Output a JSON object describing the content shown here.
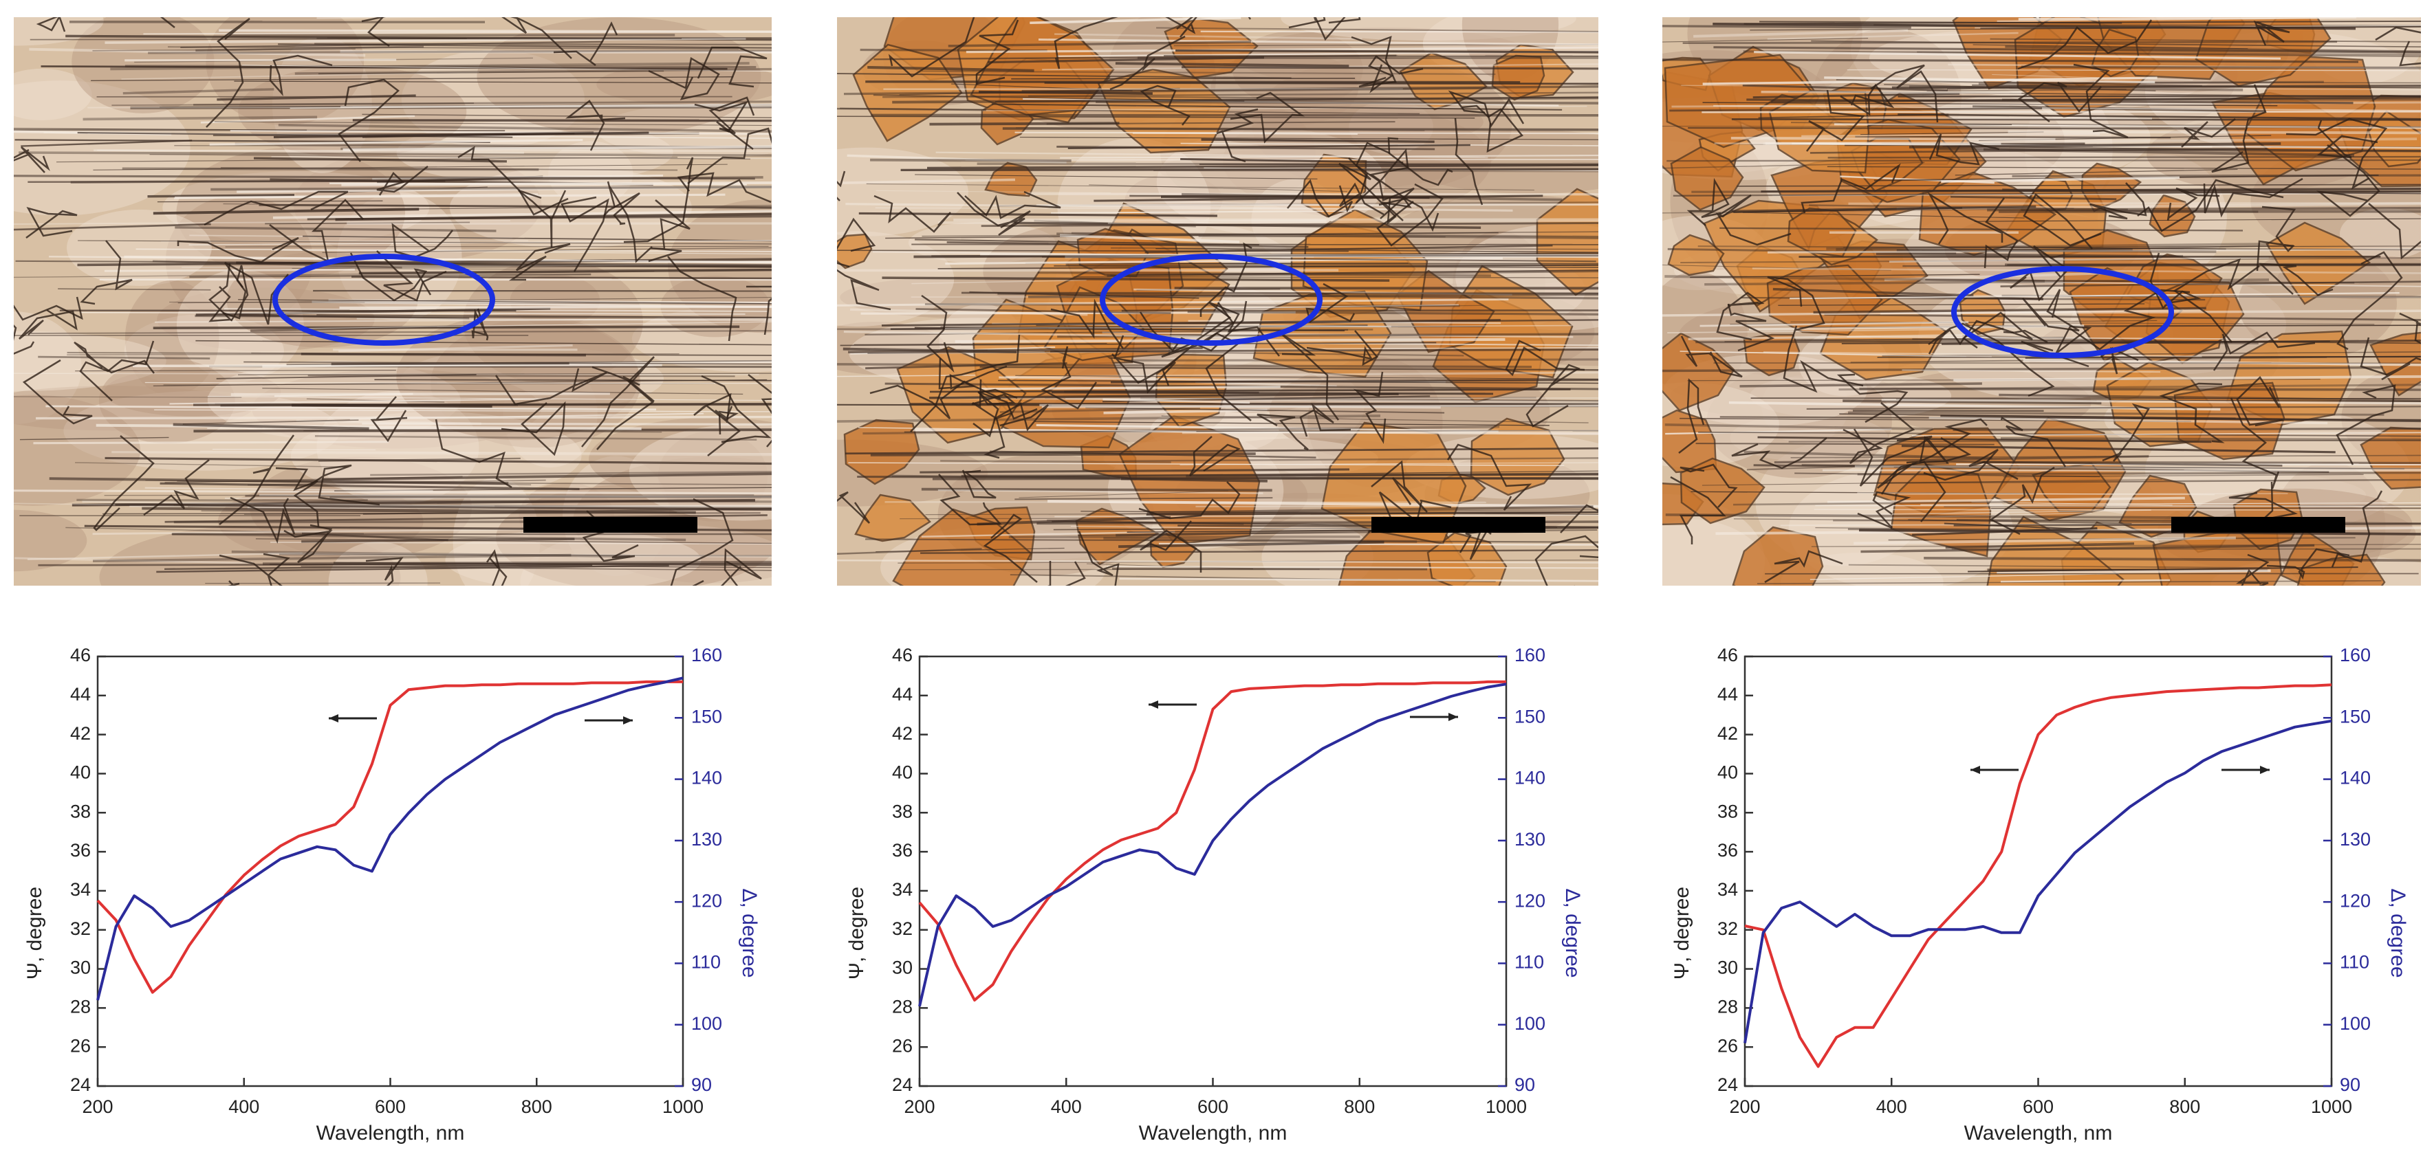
{
  "chart_data": [
    {
      "type": "line",
      "xlabel": "Wavelength, nm",
      "ylabel": "Ψ, degree",
      "y2label": "Δ, degree",
      "x": [
        200,
        225,
        250,
        275,
        300,
        325,
        350,
        375,
        400,
        425,
        450,
        475,
        500,
        525,
        550,
        575,
        600,
        625,
        650,
        675,
        700,
        725,
        750,
        775,
        800,
        825,
        850,
        875,
        900,
        925,
        950,
        975,
        1000
      ],
      "xlim": [
        200,
        1000
      ],
      "xticks": [
        200,
        400,
        600,
        800,
        1000
      ],
      "ylim": [
        24,
        46
      ],
      "yticks": [
        24,
        26,
        28,
        30,
        32,
        34,
        36,
        38,
        40,
        42,
        44,
        46
      ],
      "y2lim": [
        90,
        160
      ],
      "y2ticks": [
        90,
        100,
        110,
        120,
        130,
        140,
        150,
        160
      ],
      "series": [
        {
          "color": "#e03333",
          "values": [
            33.5,
            32.5,
            30.5,
            28.8,
            29.6,
            31.2,
            32.5,
            33.8,
            34.8,
            35.6,
            36.3,
            36.8,
            37.1,
            37.4,
            38.3,
            40.5,
            43.5,
            44.3,
            44.4,
            44.5,
            44.5,
            44.55,
            44.55,
            44.6,
            44.6,
            44.6,
            44.6,
            44.65,
            44.65,
            44.65,
            44.7,
            44.7,
            44.7
          ]
        },
        {
          "color": "#2b2b9b",
          "axis": "y2",
          "values": [
            104,
            116,
            121,
            119,
            116,
            117,
            119,
            121,
            123,
            125,
            127,
            128,
            129,
            128.5,
            126,
            125,
            131,
            134.5,
            137.5,
            140,
            142,
            144,
            146,
            147.5,
            149,
            150.5,
            151.5,
            152.5,
            153.5,
            154.5,
            155.2,
            155.8,
            156.5
          ]
        }
      ]
    },
    {
      "type": "line",
      "xlabel": "Wavelength, nm",
      "ylabel": "Ψ, degree",
      "y2label": "Δ, degree",
      "x": [
        200,
        225,
        250,
        275,
        300,
        325,
        350,
        375,
        400,
        425,
        450,
        475,
        500,
        525,
        550,
        575,
        600,
        625,
        650,
        675,
        700,
        725,
        750,
        775,
        800,
        825,
        850,
        875,
        900,
        925,
        950,
        975,
        1000
      ],
      "xlim": [
        200,
        1000
      ],
      "xticks": [
        200,
        400,
        600,
        800,
        1000
      ],
      "ylim": [
        24,
        46
      ],
      "yticks": [
        24,
        26,
        28,
        30,
        32,
        34,
        36,
        38,
        40,
        42,
        44,
        46
      ],
      "y2lim": [
        90,
        160
      ],
      "y2ticks": [
        90,
        100,
        110,
        120,
        130,
        140,
        150,
        160
      ],
      "series": [
        {
          "color": "#e03333",
          "values": [
            33.4,
            32.3,
            30.2,
            28.4,
            29.2,
            30.9,
            32.3,
            33.6,
            34.6,
            35.4,
            36.1,
            36.6,
            36.9,
            37.2,
            38,
            40.2,
            43.3,
            44.2,
            44.35,
            44.4,
            44.45,
            44.5,
            44.5,
            44.55,
            44.55,
            44.6,
            44.6,
            44.6,
            44.65,
            44.65,
            44.65,
            44.7,
            44.7
          ]
        },
        {
          "color": "#2b2b9b",
          "axis": "y2",
          "values": [
            103,
            116,
            121,
            119,
            116,
            117,
            119,
            121,
            122.5,
            124.5,
            126.5,
            127.5,
            128.5,
            128,
            125.5,
            124.5,
            130,
            133.5,
            136.5,
            139,
            141,
            143,
            145,
            146.5,
            148,
            149.5,
            150.5,
            151.5,
            152.5,
            153.5,
            154.3,
            155,
            155.5
          ]
        }
      ]
    },
    {
      "type": "line",
      "xlabel": "Wavelength, nm",
      "ylabel": "Ψ, degree",
      "y2label": "Δ, degree",
      "x": [
        200,
        225,
        250,
        275,
        300,
        325,
        350,
        375,
        400,
        425,
        450,
        475,
        500,
        525,
        550,
        575,
        600,
        625,
        650,
        675,
        700,
        725,
        750,
        775,
        800,
        825,
        850,
        875,
        900,
        925,
        950,
        975,
        1000
      ],
      "xlim": [
        200,
        1000
      ],
      "xticks": [
        200,
        400,
        600,
        800,
        1000
      ],
      "ylim": [
        24,
        46
      ],
      "yticks": [
        24,
        26,
        28,
        30,
        32,
        34,
        36,
        38,
        40,
        42,
        44,
        46
      ],
      "y2lim": [
        90,
        160
      ],
      "y2ticks": [
        90,
        100,
        110,
        120,
        130,
        140,
        150,
        160
      ],
      "series": [
        {
          "color": "#e03333",
          "values": [
            32.2,
            32,
            29,
            26.5,
            25,
            26.5,
            27,
            27,
            28.5,
            30,
            31.5,
            32.5,
            33.5,
            34.5,
            36,
            39.5,
            42,
            43,
            43.4,
            43.7,
            43.9,
            44,
            44.1,
            44.2,
            44.25,
            44.3,
            44.35,
            44.4,
            44.4,
            44.45,
            44.5,
            44.5,
            44.55
          ]
        },
        {
          "color": "#2b2b9b",
          "axis": "y2",
          "values": [
            97,
            115,
            119,
            120,
            118,
            116,
            118,
            116,
            114.5,
            114.5,
            115.5,
            115.5,
            115.5,
            116,
            115,
            115,
            121,
            124.5,
            128,
            130.5,
            133,
            135.5,
            137.5,
            139.5,
            141,
            143,
            144.5,
            145.5,
            146.5,
            147.5,
            148.5,
            149,
            149.5
          ]
        }
      ]
    }
  ]
}
